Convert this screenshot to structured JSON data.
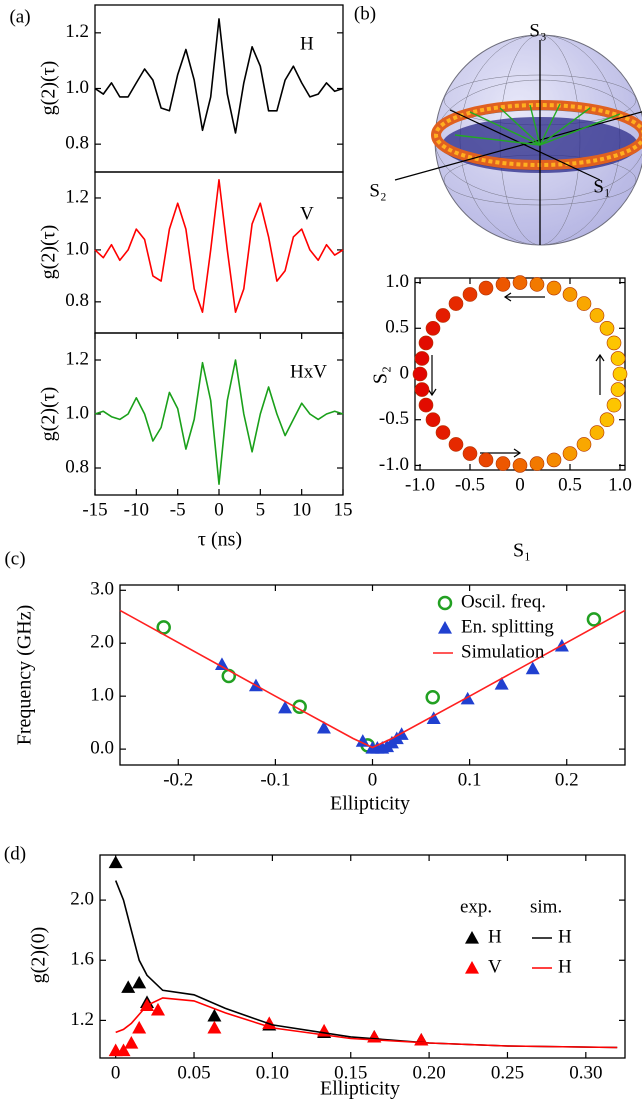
{
  "chart_data": [
    {
      "type": "line",
      "panel": "(a)",
      "ylabel": "g(2)(τ)",
      "x": [
        -15,
        -14,
        -13,
        -12,
        -11,
        -10,
        -9,
        -8,
        -7,
        -6,
        -5,
        -4,
        -3,
        -2,
        -1,
        0,
        1,
        2,
        3,
        4,
        5,
        6,
        7,
        8,
        9,
        10,
        11,
        12,
        13,
        14,
        15
      ],
      "xlim": [
        -15,
        15
      ],
      "ylim": [
        0.7,
        1.3
      ],
      "yticks": [
        0.8,
        {
          "value": 1,
          "label": "1.0"
        },
        1.2
      ],
      "series": [
        {
          "name": "H",
          "color": "#000000",
          "values": [
            1.0,
            0.98,
            1.02,
            0.97,
            0.97,
            1.02,
            1.07,
            1.03,
            0.93,
            0.92,
            1.05,
            1.14,
            1.03,
            0.85,
            0.97,
            1.25,
            0.98,
            0.84,
            1.02,
            1.15,
            1.08,
            0.92,
            0.92,
            1.03,
            1.08,
            1.02,
            0.97,
            0.98,
            1.02,
            0.99,
            1.0
          ]
        }
      ]
    },
    {
      "type": "line",
      "ylabel": "g(2)(τ)",
      "x": [
        -15,
        -14,
        -13,
        -12,
        -11,
        -10,
        -9,
        -8,
        -7,
        -6,
        -5,
        -4,
        -3,
        -2,
        -1,
        0,
        1,
        2,
        3,
        4,
        5,
        6,
        7,
        8,
        9,
        10,
        11,
        12,
        13,
        14,
        15
      ],
      "xlim": [
        -15,
        15
      ],
      "ylim": [
        0.68,
        1.3
      ],
      "yticks": [
        0.8,
        {
          "value": 1,
          "label": "1.0"
        },
        1.2
      ],
      "series": [
        {
          "name": "V",
          "color": "#ff0000",
          "values": [
            1.0,
            0.97,
            1.02,
            0.96,
            1.0,
            1.08,
            1.04,
            0.9,
            0.88,
            1.08,
            1.18,
            1.08,
            0.85,
            0.76,
            1.0,
            1.27,
            1.0,
            0.76,
            0.85,
            1.1,
            1.18,
            1.05,
            0.88,
            0.92,
            1.05,
            1.08,
            1.0,
            0.96,
            1.02,
            0.98,
            1.0
          ]
        }
      ]
    },
    {
      "type": "line",
      "ylabel": "g(2)(τ)",
      "xlabel": "τ (ns)",
      "x": [
        -15,
        -14,
        -13,
        -12,
        -11,
        -10,
        -9,
        -8,
        -7,
        -6,
        -5,
        -4,
        -3,
        -2,
        -1,
        0,
        1,
        2,
        3,
        4,
        5,
        6,
        7,
        8,
        9,
        10,
        11,
        12,
        13,
        14,
        15
      ],
      "xlim": [
        -15,
        15
      ],
      "ylim": [
        0.7,
        1.3
      ],
      "xticks": [
        -15,
        -10,
        -5,
        0,
        5,
        10,
        15
      ],
      "yticks": [
        0.8,
        {
          "value": 1,
          "label": "1.0"
        },
        1.2
      ],
      "series": [
        {
          "name": "HxV",
          "color": "#1aa01a",
          "values": [
            1.0,
            1.01,
            0.99,
            0.98,
            1.0,
            1.06,
            1.0,
            0.9,
            0.95,
            1.08,
            1.02,
            0.87,
            0.98,
            1.19,
            1.05,
            0.74,
            1.05,
            1.2,
            1.0,
            0.86,
            1.0,
            1.1,
            1.0,
            0.92,
            0.98,
            1.04,
            1.0,
            0.98,
            1.0,
            1.01,
            1.0
          ]
        }
      ]
    },
    {
      "type": "scatter",
      "panel": "(b)",
      "sphere_labels": [
        "S₃",
        "S₂",
        "S₁"
      ],
      "xlabel": "S₁",
      "ylabel": "S₂",
      "colormap": [
        "#e00000",
        "#ffd000"
      ],
      "xlim": [
        -1.05,
        1.05
      ],
      "ylim": [
        -1.05,
        1.05
      ],
      "xticks": [
        {
          "value": -1,
          "label": "-1.0"
        },
        -0.5,
        0,
        0.5,
        {
          "value": 1,
          "label": "1.0"
        }
      ],
      "yticks": [
        {
          "value": -1,
          "label": "-1.0"
        },
        -0.5,
        0,
        0.5,
        {
          "value": 1,
          "label": "1.0"
        }
      ],
      "series": [
        {
          "x": [
            1,
            0.98,
            0.94,
            0.87,
            0.77,
            0.64,
            0.5,
            0.34,
            0.17,
            0,
            -0.17,
            -0.34,
            -0.5,
            -0.64,
            -0.77,
            -0.87,
            -0.94,
            -0.98,
            -1,
            -0.98,
            -0.94,
            -0.87,
            -0.77,
            -0.64,
            -0.5,
            -0.34,
            -0.17,
            0,
            0.17,
            0.34,
            0.5,
            0.64,
            0.77,
            0.87,
            0.94,
            0.98
          ],
          "values": [
            0,
            0.17,
            0.34,
            0.5,
            0.64,
            0.77,
            0.87,
            0.94,
            0.98,
            1,
            0.98,
            0.94,
            0.87,
            0.77,
            0.64,
            0.5,
            0.34,
            0.17,
            0,
            -0.17,
            -0.34,
            -0.5,
            -0.64,
            -0.77,
            -0.87,
            -0.94,
            -0.98,
            -1,
            -0.98,
            -0.94,
            -0.87,
            -0.77,
            -0.64,
            -0.5,
            -0.34,
            -0.17
          ]
        }
      ]
    },
    {
      "type": "combo",
      "panel": "(c)",
      "xlabel": "Ellipticity",
      "ylabel": "Frequency (GHz)",
      "xlim": [
        -0.26,
        0.26
      ],
      "ylim": [
        -0.3,
        3.1
      ],
      "xticks": [
        -0.2,
        -0.1,
        0,
        0.1,
        0.2
      ],
      "yticks": [
        {
          "value": 0,
          "label": "0.0"
        },
        {
          "value": 1,
          "label": "1.0"
        },
        {
          "value": 2,
          "label": "2.0"
        },
        {
          "value": 3,
          "label": "3.0"
        }
      ],
      "series": [
        {
          "name": "Oscil. freq.",
          "marker": "circle",
          "color": "#22a022",
          "x": [
            -0.215,
            -0.148,
            -0.075,
            -0.005,
            0.062,
            0.228
          ],
          "values": [
            2.3,
            1.38,
            0.8,
            0.07,
            0.98,
            2.45
          ]
        },
        {
          "name": "En. splitting",
          "marker": "triangle",
          "color": "#2040d0",
          "x": [
            -0.155,
            -0.12,
            -0.09,
            -0.05,
            -0.01,
            0,
            0.005,
            0.01,
            0.015,
            0.02,
            0.025,
            0.03,
            0.063,
            0.098,
            0.133,
            0.165,
            0.195
          ],
          "values": [
            1.6,
            1.2,
            0.78,
            0.4,
            0.15,
            0.02,
            0.02,
            0.02,
            0.05,
            0.12,
            0.2,
            0.28,
            0.58,
            0.95,
            1.23,
            1.52,
            1.95
          ]
        },
        {
          "name": "Simulation",
          "marker": "line",
          "color": "#ff2020",
          "x": [
            -0.26,
            -0.1,
            -0.02,
            0,
            0.02,
            0.1,
            0.26
          ],
          "values": [
            2.62,
            1.0,
            0.2,
            0.03,
            0.2,
            1.0,
            2.62
          ]
        }
      ]
    },
    {
      "type": "combo",
      "panel": "(d)",
      "xlabel": "Ellipticity",
      "ylabel": "g(2)(0)",
      "legend_headers": [
        "exp.",
        "sim."
      ],
      "xlim": [
        -0.01,
        0.325
      ],
      "ylim": [
        0.95,
        2.3
      ],
      "xticks": [
        0,
        0.05,
        {
          "value": 0.1,
          "label": "0.10"
        },
        0.15,
        {
          "value": 0.2,
          "label": "0.20"
        },
        0.25,
        {
          "value": 0.3,
          "label": "0.30"
        }
      ],
      "yticks": [
        1.2,
        1.6,
        {
          "value": 2,
          "label": "2.0"
        }
      ],
      "series": [
        {
          "name": "H",
          "marker": "triangle",
          "color": "#000000",
          "x": [
            0,
            0.008,
            0.015,
            0.02,
            0.063,
            0.098,
            0.133,
            0.165,
            0.195
          ],
          "values": [
            2.25,
            1.42,
            1.45,
            1.32,
            1.23,
            1.17,
            1.12,
            1.09,
            1.07
          ]
        },
        {
          "name": "V",
          "marker": "triangle",
          "color": "#ff0000",
          "x": [
            0,
            0.005,
            0.01,
            0.015,
            0.02,
            0.027,
            0.063,
            0.098,
            0.133,
            0.165,
            0.195
          ],
          "values": [
            1.0,
            1.0,
            1.05,
            1.15,
            1.3,
            1.27,
            1.15,
            1.18,
            1.13,
            1.09,
            1.07
          ]
        },
        {
          "name": "H",
          "marker": "line",
          "color": "#000000",
          "x": [
            0,
            0.005,
            0.01,
            0.015,
            0.02,
            0.03,
            0.05,
            0.07,
            0.1,
            0.15,
            0.2,
            0.25,
            0.32
          ],
          "values": [
            2.13,
            2.0,
            1.8,
            1.6,
            1.5,
            1.4,
            1.37,
            1.28,
            1.17,
            1.09,
            1.05,
            1.03,
            1.02
          ]
        },
        {
          "name": "H",
          "marker": "line",
          "color": "#ff0000",
          "x": [
            0,
            0.005,
            0.01,
            0.015,
            0.02,
            0.03,
            0.05,
            0.07,
            0.1,
            0.15,
            0.2,
            0.25,
            0.32
          ],
          "values": [
            1.12,
            1.14,
            1.18,
            1.24,
            1.3,
            1.35,
            1.33,
            1.25,
            1.15,
            1.08,
            1.05,
            1.03,
            1.02
          ]
        }
      ]
    }
  ]
}
